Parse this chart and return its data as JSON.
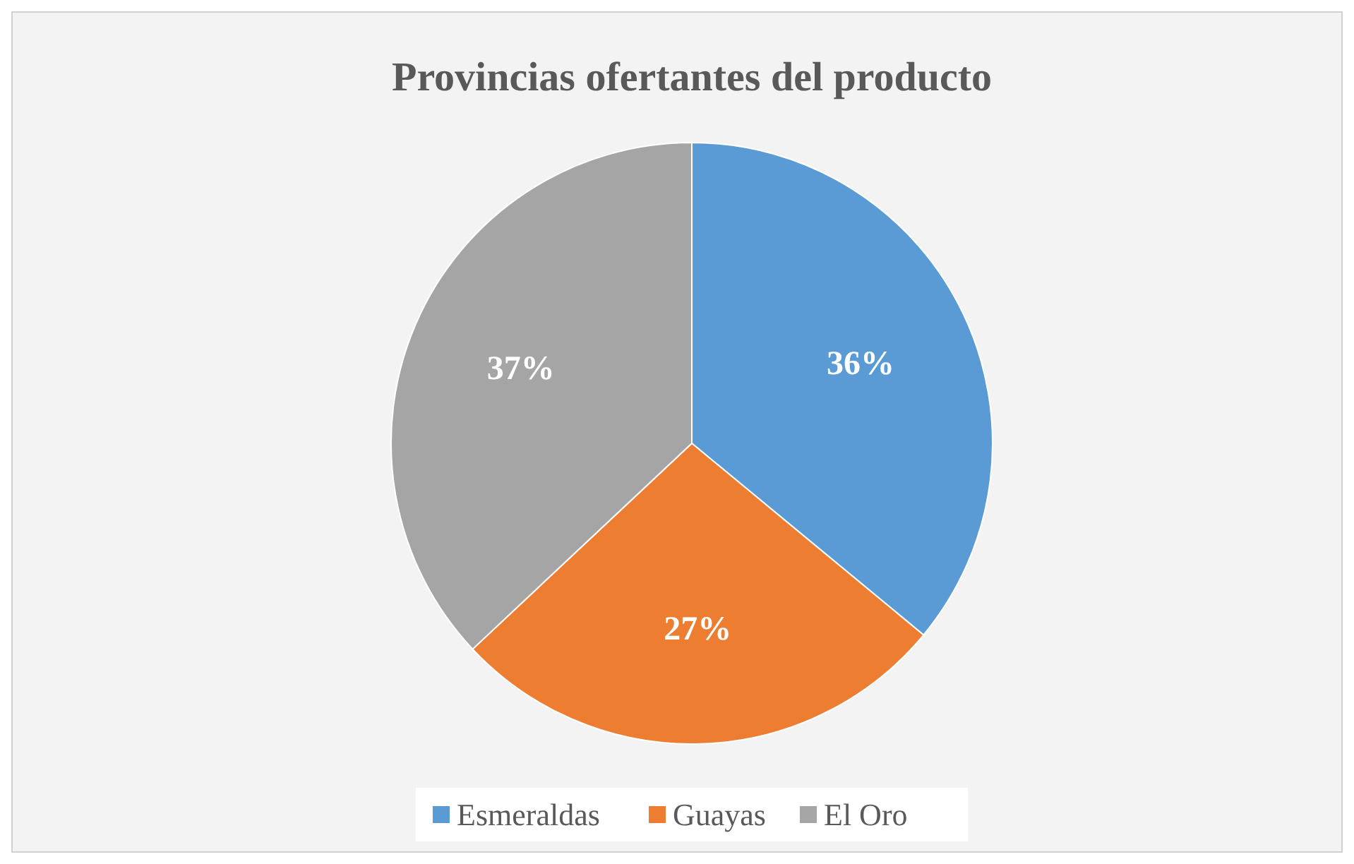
{
  "chart_data": {
    "type": "pie",
    "title": "Provincias ofertantes del producto",
    "categories": [
      "Esmeraldas",
      "Guayas",
      "El Oro"
    ],
    "values": [
      36,
      27,
      37
    ],
    "colors": [
      "#5b9bd5",
      "#ed7d31",
      "#a5a5a5"
    ],
    "value_labels": [
      "36%",
      "27%",
      "37%"
    ],
    "legend": "bottom"
  }
}
